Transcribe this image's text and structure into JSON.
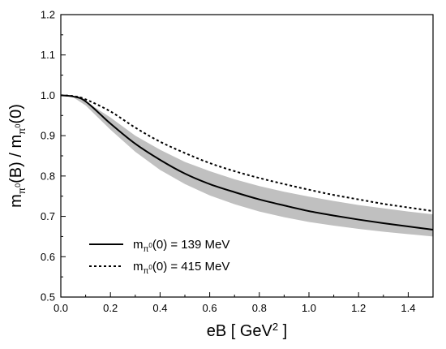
{
  "chart_data": {
    "type": "line",
    "title": "",
    "xlabel": {
      "base": "eB  [ GeV",
      "sup": "2",
      "tail": " ]"
    },
    "ylabel": {
      "p1": "m",
      "s1": "π",
      "s1sup": "0",
      "p2": "(B) / m",
      "s2": "π",
      "s2sup": "0",
      "p3": "(0)"
    },
    "xlim": [
      0.0,
      1.5
    ],
    "ylim": [
      0.5,
      1.2
    ],
    "xticks": [
      0.0,
      0.2,
      0.4,
      0.6,
      0.8,
      1.0,
      1.2,
      1.4
    ],
    "xtick_labels": [
      "0.0",
      "0.2",
      "0.4",
      "0.6",
      "0.8",
      "1.0",
      "1.2",
      "1.4"
    ],
    "yticks": [
      0.5,
      0.6,
      0.7,
      0.8,
      0.9,
      1.0,
      1.1,
      1.2
    ],
    "ytick_labels": [
      "0.5",
      "0.6",
      "0.7",
      "0.8",
      "0.9",
      "1.0",
      "1.1",
      "1.2"
    ],
    "grid": false,
    "legend_position": "bottom-left",
    "band": {
      "color": "#c0c0c0",
      "x": [
        0.0,
        0.05,
        0.1,
        0.2,
        0.3,
        0.4,
        0.5,
        0.6,
        0.7,
        0.8,
        0.9,
        1.0,
        1.1,
        1.2,
        1.3,
        1.4,
        1.5
      ],
      "upper": [
        1.0,
        0.998,
        0.985,
        0.945,
        0.9,
        0.865,
        0.835,
        0.812,
        0.792,
        0.775,
        0.761,
        0.749,
        0.738,
        0.728,
        0.72,
        0.712,
        0.705
      ],
      "lower": [
        1.0,
        0.995,
        0.975,
        0.915,
        0.86,
        0.815,
        0.78,
        0.752,
        0.73,
        0.712,
        0.698,
        0.686,
        0.677,
        0.669,
        0.662,
        0.656,
        0.65
      ]
    },
    "series": [
      {
        "name": {
          "p1": "m",
          "sub": "π",
          "subsup": "0",
          "p2": "(0) = 139 MeV"
        },
        "style": "solid",
        "color": "#000000",
        "x": [
          0.0,
          0.05,
          0.1,
          0.2,
          0.3,
          0.4,
          0.5,
          0.6,
          0.7,
          0.8,
          0.9,
          1.0,
          1.1,
          1.2,
          1.3,
          1.4,
          1.5
        ],
        "y": [
          1.0,
          0.997,
          0.985,
          0.93,
          0.88,
          0.84,
          0.806,
          0.78,
          0.76,
          0.742,
          0.727,
          0.713,
          0.702,
          0.692,
          0.683,
          0.675,
          0.667
        ]
      },
      {
        "name": {
          "p1": "m",
          "sub": "π",
          "subsup": "0",
          "p2": "(0) = 415 MeV"
        },
        "style": "dashed",
        "color": "#000000",
        "x": [
          0.0,
          0.05,
          0.1,
          0.2,
          0.3,
          0.4,
          0.5,
          0.6,
          0.7,
          0.8,
          0.9,
          1.0,
          1.1,
          1.2,
          1.3,
          1.4,
          1.5
        ],
        "y": [
          1.0,
          0.998,
          0.99,
          0.96,
          0.92,
          0.885,
          0.857,
          0.832,
          0.812,
          0.795,
          0.78,
          0.766,
          0.753,
          0.742,
          0.731,
          0.722,
          0.713
        ]
      }
    ]
  }
}
